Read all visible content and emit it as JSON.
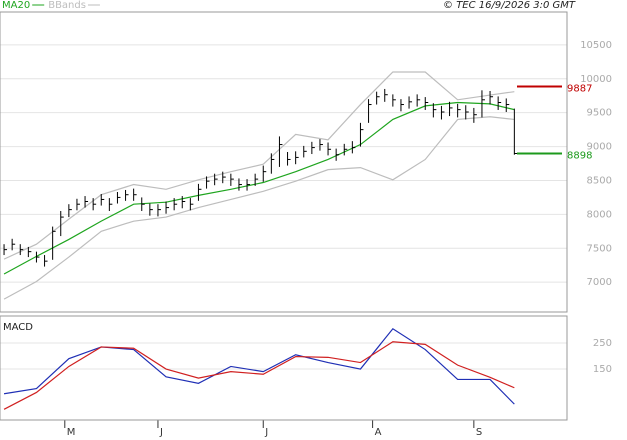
{
  "copyright": "© TEC 16/9/2026 3:0 GMT",
  "chart_data": [
    {
      "type": "ohlc",
      "xlim": [
        -0.5,
        69.5
      ],
      "ylim": [
        6560,
        10985
      ],
      "yticks": [
        7000,
        7500,
        8000,
        8500,
        9000,
        9500,
        10000,
        10500
      ],
      "grid": true,
      "bars": {
        "color": "#000000",
        "high": [
          7560,
          7640,
          7560,
          7520,
          7450,
          7400,
          7820,
          8050,
          8150,
          8230,
          8270,
          8240,
          8300,
          8240,
          8330,
          8360,
          8380,
          8250,
          8160,
          8150,
          8190,
          8240,
          8270,
          8240,
          8450,
          8560,
          8600,
          8630,
          8600,
          8530,
          8520,
          8600,
          8720,
          8900,
          9150,
          8920,
          8930,
          9010,
          9070,
          9110,
          9060,
          8970,
          9040,
          9080,
          9350,
          9700,
          9810,
          9850,
          9770,
          9700,
          9740,
          9770,
          9730,
          9640,
          9600,
          9660,
          9630,
          9610,
          9570,
          9830,
          9820,
          9740,
          9710,
          9560
        ],
        "low": [
          7400,
          7470,
          7400,
          7370,
          7290,
          7230,
          7330,
          7680,
          7960,
          8060,
          8100,
          8060,
          8130,
          8050,
          8160,
          8200,
          8200,
          8050,
          7980,
          7970,
          8010,
          8060,
          8090,
          8060,
          8200,
          8380,
          8430,
          8460,
          8420,
          8350,
          8350,
          8420,
          8480,
          8600,
          8700,
          8720,
          8740,
          8840,
          8890,
          8940,
          8870,
          8790,
          8870,
          8900,
          9000,
          9350,
          9620,
          9660,
          9590,
          9520,
          9560,
          9590,
          9540,
          9430,
          9400,
          9450,
          9430,
          9400,
          9350,
          9430,
          9620,
          9540,
          9510,
          8880
        ],
        "close": [
          7480,
          7560,
          7480,
          7450,
          7370,
          7310,
          7750,
          7960,
          8070,
          8150,
          8190,
          8150,
          8220,
          8150,
          8250,
          8290,
          8290,
          8150,
          8070,
          8070,
          8100,
          8150,
          8190,
          8150,
          8370,
          8490,
          8520,
          8550,
          8520,
          8440,
          8440,
          8520,
          8630,
          8810,
          9030,
          8810,
          8840,
          8930,
          8985,
          9030,
          8960,
          8880,
          8960,
          8985,
          9250,
          9620,
          9735,
          9765,
          9690,
          9620,
          9660,
          9690,
          9650,
          9545,
          9510,
          9570,
          9545,
          9510,
          9470,
          9690,
          9735,
          9650,
          9620,
          8898
        ]
      },
      "series": [
        {
          "name": "MA20",
          "color": "#1fa51f",
          "x": [
            0,
            4,
            8,
            12,
            16,
            20,
            24,
            28,
            32,
            36,
            40,
            44,
            48,
            52,
            56,
            60,
            63
          ],
          "values": [
            7120,
            7380,
            7630,
            7900,
            8150,
            8180,
            8280,
            8370,
            8470,
            8630,
            8810,
            9030,
            9400,
            9600,
            9650,
            9630,
            9545
          ]
        },
        {
          "name": "BBands",
          "color": "#bdbdbd",
          "x": [
            0,
            4,
            8,
            12,
            16,
            20,
            24,
            28,
            32,
            36,
            40,
            44,
            48,
            52,
            56,
            60,
            63
          ],
          "values": [
            7340,
            7560,
            7930,
            8290,
            8440,
            8370,
            8510,
            8630,
            8740,
            9180,
            9100,
            9620,
            10100,
            10100,
            9690,
            9760,
            9810
          ]
        },
        {
          "color": "#bdbdbd",
          "x": [
            0,
            4,
            8,
            12,
            16,
            20,
            24,
            28,
            32,
            36,
            40,
            44,
            48,
            52,
            56,
            60,
            63
          ],
          "values": [
            6750,
            7010,
            7370,
            7750,
            7900,
            7960,
            8100,
            8220,
            8340,
            8490,
            8660,
            8690,
            8510,
            8810,
            9400,
            9440,
            9400
          ]
        }
      ],
      "levels": [
        {
          "value": 9887,
          "color": "#c00000"
        },
        {
          "value": 8898,
          "color": "#1c9a1c"
        }
      ]
    },
    {
      "type": "line",
      "title": "MACD",
      "xlim": [
        -0.5,
        69.5
      ],
      "ylim": [
        -46,
        354
      ],
      "yticks": [
        150,
        250
      ],
      "grid": true,
      "xticks": [
        {
          "value": 7.5,
          "label": "M"
        },
        {
          "value": 19,
          "label": "J"
        },
        {
          "value": 32,
          "label": "J"
        },
        {
          "value": 45.5,
          "label": "A"
        },
        {
          "value": 58,
          "label": "S"
        }
      ],
      "series": [
        {
          "color": "#1f2fb5",
          "x": [
            0,
            4,
            8,
            12,
            16,
            20,
            24,
            28,
            32,
            36,
            40,
            44,
            48,
            52,
            56,
            60,
            63
          ],
          "values": [
            55,
            75,
            190,
            235,
            225,
            120,
            95,
            160,
            140,
            205,
            175,
            150,
            305,
            225,
            110,
            110,
            15
          ]
        },
        {
          "color": "#d02020",
          "x": [
            0,
            4,
            8,
            12,
            16,
            20,
            24,
            28,
            32,
            36,
            40,
            44,
            48,
            52,
            56,
            60,
            63
          ],
          "values": [
            -5,
            60,
            160,
            235,
            230,
            150,
            115,
            140,
            130,
            198,
            195,
            175,
            255,
            245,
            165,
            118,
            78
          ]
        }
      ]
    }
  ]
}
